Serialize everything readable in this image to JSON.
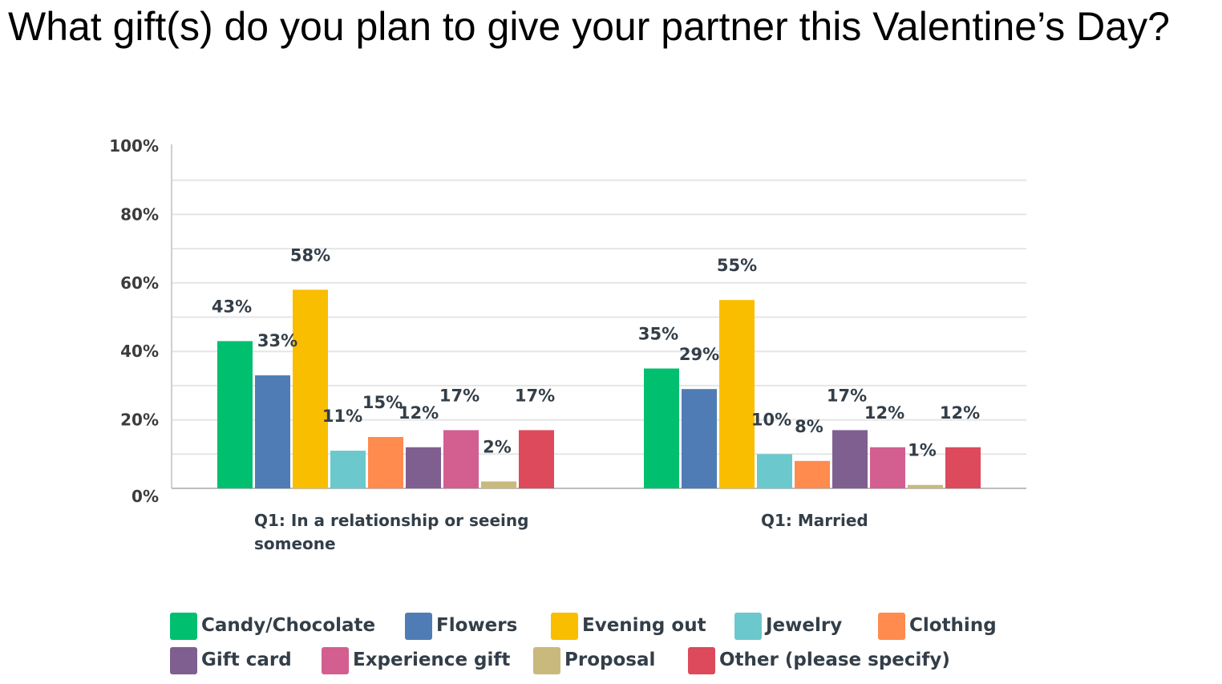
{
  "chart_data": {
    "type": "bar",
    "title": "What gift(s) do you plan to give your partner this Valentine’s Day?",
    "categories": [
      [
        "Q1: In a relationship or seeing",
        "someone"
      ],
      [
        "Q1: Married"
      ]
    ],
    "ylim": [
      0,
      100
    ],
    "yticks": [
      0,
      20,
      40,
      60,
      80,
      100
    ],
    "ytick_labels": [
      "0%",
      "20%",
      "40%",
      "60%",
      "80%",
      "100%"
    ],
    "grid": true,
    "legend_position": "bottom",
    "series": [
      {
        "name": "Candy/Chocolate",
        "color": "#00bf6f",
        "values": [
          43,
          35
        ],
        "labels": [
          "43%",
          "35%"
        ]
      },
      {
        "name": "Flowers",
        "color": "#507cb6",
        "values": [
          33,
          29
        ],
        "labels": [
          "33%",
          "29%"
        ]
      },
      {
        "name": "Evening out",
        "color": "#f9be00",
        "values": [
          58,
          55
        ],
        "labels": [
          "58%",
          "55%"
        ]
      },
      {
        "name": "Jewelry",
        "color": "#6bc8cd",
        "values": [
          11,
          10
        ],
        "labels": [
          "11%",
          "10%"
        ]
      },
      {
        "name": "Clothing",
        "color": "#ff8b4f",
        "values": [
          15,
          8
        ],
        "labels": [
          "15%",
          "8%"
        ]
      },
      {
        "name": "Gift card",
        "color": "#7f5f90",
        "values": [
          12,
          17
        ],
        "labels": [
          "12%",
          "17%"
        ]
      },
      {
        "name": "Experience gift",
        "color": "#d25f90",
        "values": [
          17,
          12
        ],
        "labels": [
          "17%",
          "12%"
        ]
      },
      {
        "name": "Proposal",
        "color": "#c9b97c",
        "values": [
          2,
          1
        ],
        "labels": [
          "2%",
          "1%"
        ]
      },
      {
        "name": "Other (please specify)",
        "color": "#dc4a5c",
        "values": [
          17,
          12
        ],
        "labels": [
          "17%",
          "12%"
        ]
      }
    ]
  }
}
